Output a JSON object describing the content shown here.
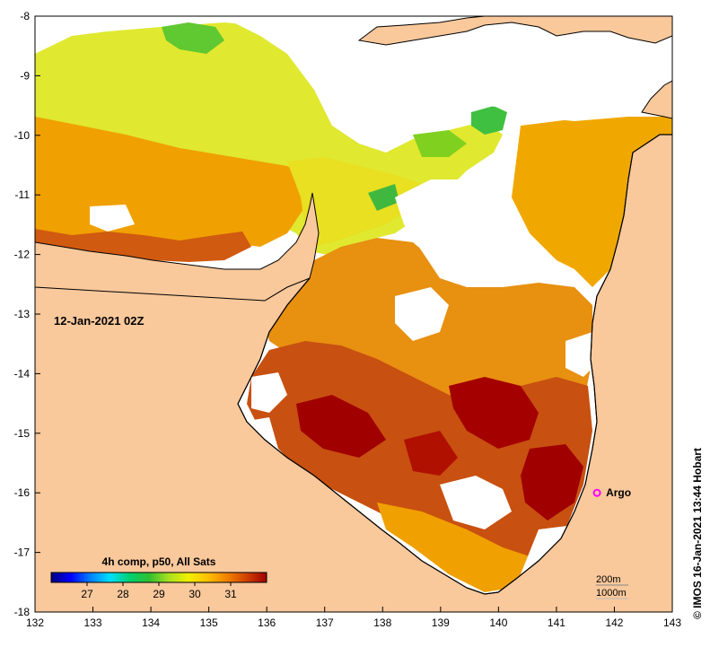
{
  "map": {
    "timestamp": "12-Jan-2021 02Z",
    "credit": "© IMOS 16-Jan-2021 13:44 Hobart",
    "x_ticks": [
      "132",
      "133",
      "134",
      "135",
      "136",
      "137",
      "138",
      "139",
      "140",
      "141",
      "142",
      "143"
    ],
    "y_ticks": [
      "-8",
      "-9",
      "-10",
      "-11",
      "-12",
      "-13",
      "-14",
      "-15",
      "-16",
      "-17",
      "-18"
    ],
    "x_range": [
      132,
      143
    ],
    "y_range": [
      -18,
      -8
    ],
    "land_color": "#f9c89b",
    "frame_color": "#000000"
  },
  "colorbar": {
    "title": "4h comp, p50, All Sats",
    "ticks": [
      "27",
      "28",
      "29",
      "30",
      "31"
    ],
    "tick_values": [
      27,
      28,
      29,
      30,
      31
    ],
    "range": [
      26,
      32
    ],
    "colors": [
      "#00007f",
      "#0000ff",
      "#0080ff",
      "#00e0ff",
      "#00d070",
      "#30c030",
      "#a8e020",
      "#f0f000",
      "#ffc000",
      "#f08000",
      "#d04000",
      "#a00000"
    ]
  },
  "marker": {
    "label": "Argo",
    "lon": 141.7,
    "lat": -16.0,
    "color": "#ff00ff"
  },
  "contours": {
    "labels": [
      "200m",
      "1000m"
    ]
  }
}
